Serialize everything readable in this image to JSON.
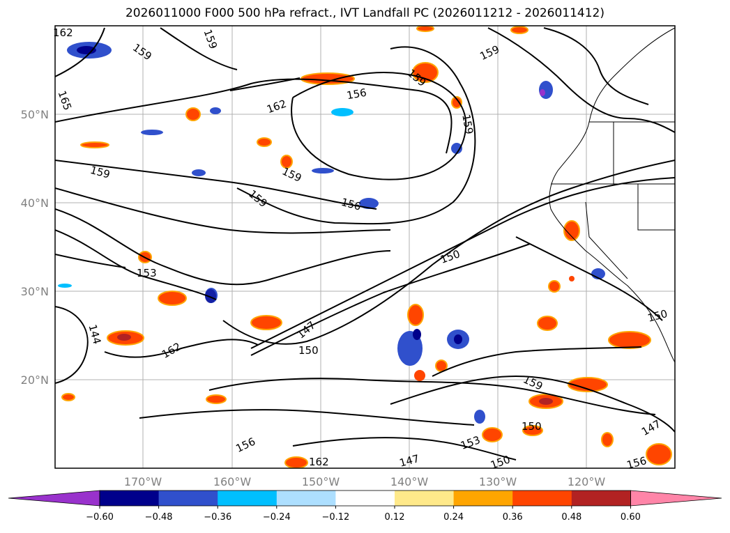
{
  "title": "2026011000 F000 500 hPa refract., IVT Landfall PC (2026011212 - 2026011412)",
  "lat_labels": [
    "50°N",
    "40°N",
    "30°N",
    "20°N"
  ],
  "lon_labels": [
    "170°W",
    "160°W",
    "150°W",
    "140°W",
    "130°W",
    "120°W"
  ],
  "colorbar": {
    "ticks": [
      "−0.60",
      "−0.48",
      "−0.36",
      "−0.24",
      "−0.12",
      "0.12",
      "0.24",
      "0.36",
      "0.48",
      "0.60"
    ],
    "colors": [
      "#9932CC",
      "#00008B",
      "#3050CC",
      "#00BFFF",
      "#ADDFFF",
      "#FFFFFF",
      "#FFE98A",
      "#FFA500",
      "#FF4500",
      "#B22222",
      "#FF85A8"
    ]
  },
  "contour_labels": [
    "162",
    "159",
    "165",
    "159",
    "162",
    "156",
    "159",
    "159",
    "159",
    "159",
    "159",
    "159",
    "156",
    "150",
    "153",
    "147",
    "144",
    "162",
    "150",
    "159",
    "153",
    "150",
    "150",
    "147",
    "156",
    "162",
    "147",
    "156",
    "150"
  ],
  "colors": {
    "grid": "#b0b0b0",
    "contour": "#000000"
  }
}
